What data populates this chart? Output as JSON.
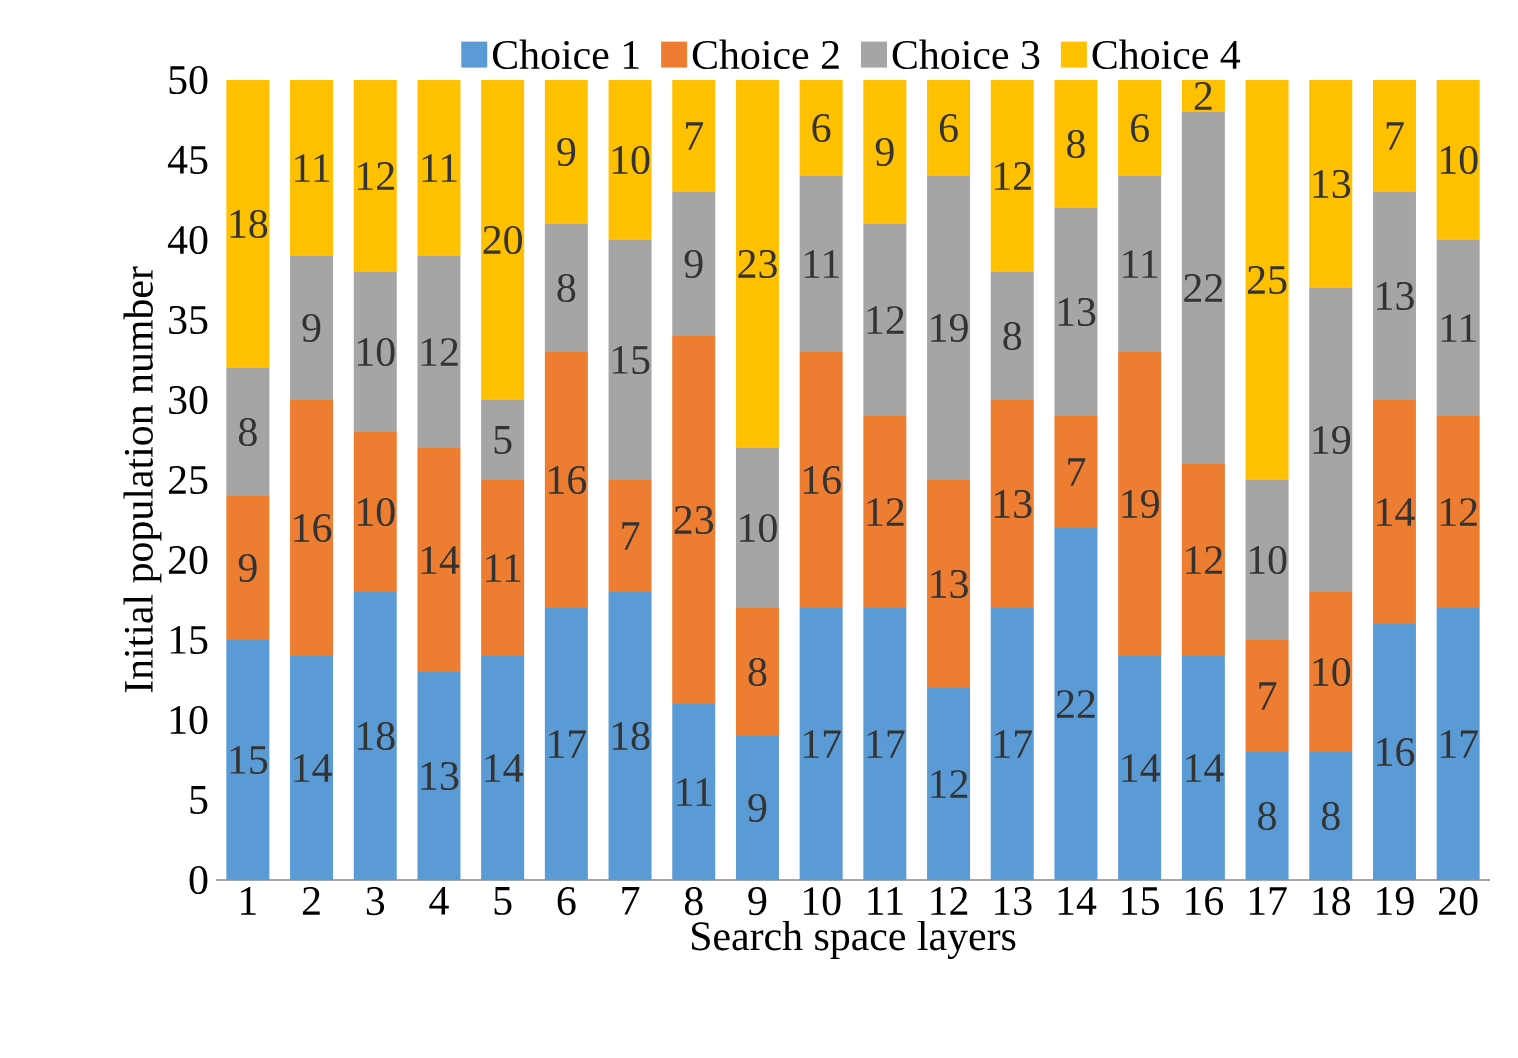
{
  "chart_data": {
    "type": "bar",
    "stacked": true,
    "xlabel": "Search space layers",
    "ylabel": "Initial population number",
    "categories": [
      "1",
      "2",
      "3",
      "4",
      "5",
      "6",
      "7",
      "8",
      "9",
      "10",
      "11",
      "12",
      "13",
      "14",
      "15",
      "16",
      "17",
      "18",
      "19",
      "20"
    ],
    "series": [
      {
        "name": "Choice 1",
        "color": "#5b9bd5",
        "values": [
          15,
          14,
          18,
          13,
          14,
          17,
          18,
          11,
          9,
          17,
          17,
          12,
          17,
          22,
          14,
          14,
          8,
          8,
          16,
          17
        ]
      },
      {
        "name": "Choice 2",
        "color": "#ed7d31",
        "values": [
          9,
          16,
          10,
          14,
          11,
          16,
          7,
          23,
          8,
          16,
          12,
          13,
          13,
          7,
          19,
          12,
          7,
          10,
          14,
          12
        ]
      },
      {
        "name": "Choice 3",
        "color": "#a5a5a5",
        "values": [
          8,
          9,
          10,
          12,
          5,
          8,
          15,
          9,
          10,
          11,
          12,
          19,
          8,
          13,
          11,
          22,
          10,
          19,
          13,
          11
        ]
      },
      {
        "name": "Choice 4",
        "color": "#ffc000",
        "values": [
          18,
          11,
          12,
          11,
          20,
          9,
          10,
          7,
          23,
          6,
          9,
          6,
          12,
          8,
          6,
          2,
          25,
          13,
          7,
          10
        ]
      }
    ],
    "ylim": [
      0,
      50
    ],
    "yticks": [
      0,
      5,
      10,
      15,
      20,
      25,
      30,
      35,
      40,
      45,
      50
    ],
    "data_labels": true,
    "legend": "top",
    "grid": false
  }
}
